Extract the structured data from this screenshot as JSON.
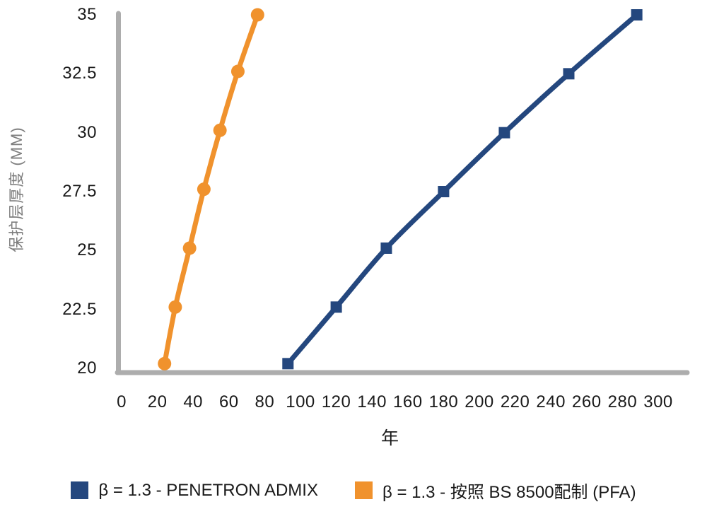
{
  "chart_data": {
    "type": "line",
    "title": "",
    "xlabel": "年",
    "ylabel": "保护层厚度 (MM)",
    "xlim": [
      0,
      300
    ],
    "ylim": [
      20,
      35
    ],
    "x_ticks": [
      0,
      20,
      40,
      60,
      80,
      100,
      120,
      140,
      160,
      180,
      200,
      220,
      240,
      260,
      280,
      300
    ],
    "y_ticks": [
      20,
      22.5,
      25,
      27.5,
      30,
      32.5,
      35
    ],
    "grid": false,
    "legend_position": "bottom",
    "axis_color": "#ADADAD",
    "tick_label_color": "#1A1A1A",
    "axis_title_color": "#7E7E7E",
    "series": [
      {
        "name": "β = 1.3 - PENETRON ADMIX",
        "color": "#24477E",
        "marker": "square",
        "x": [
          93,
          120,
          148,
          180,
          214,
          250,
          288
        ],
        "y": [
          20.2,
          22.6,
          25.1,
          27.5,
          30.0,
          32.5,
          35.0
        ]
      },
      {
        "name": "β = 1.3 - 按照 BS 8500配制 (PFA)",
        "color": "#F0922D",
        "marker": "circle",
        "x": [
          24,
          30,
          38,
          46,
          55,
          65,
          76
        ],
        "y": [
          20.2,
          22.6,
          25.1,
          27.6,
          30.1,
          32.6,
          35.0
        ]
      }
    ]
  }
}
